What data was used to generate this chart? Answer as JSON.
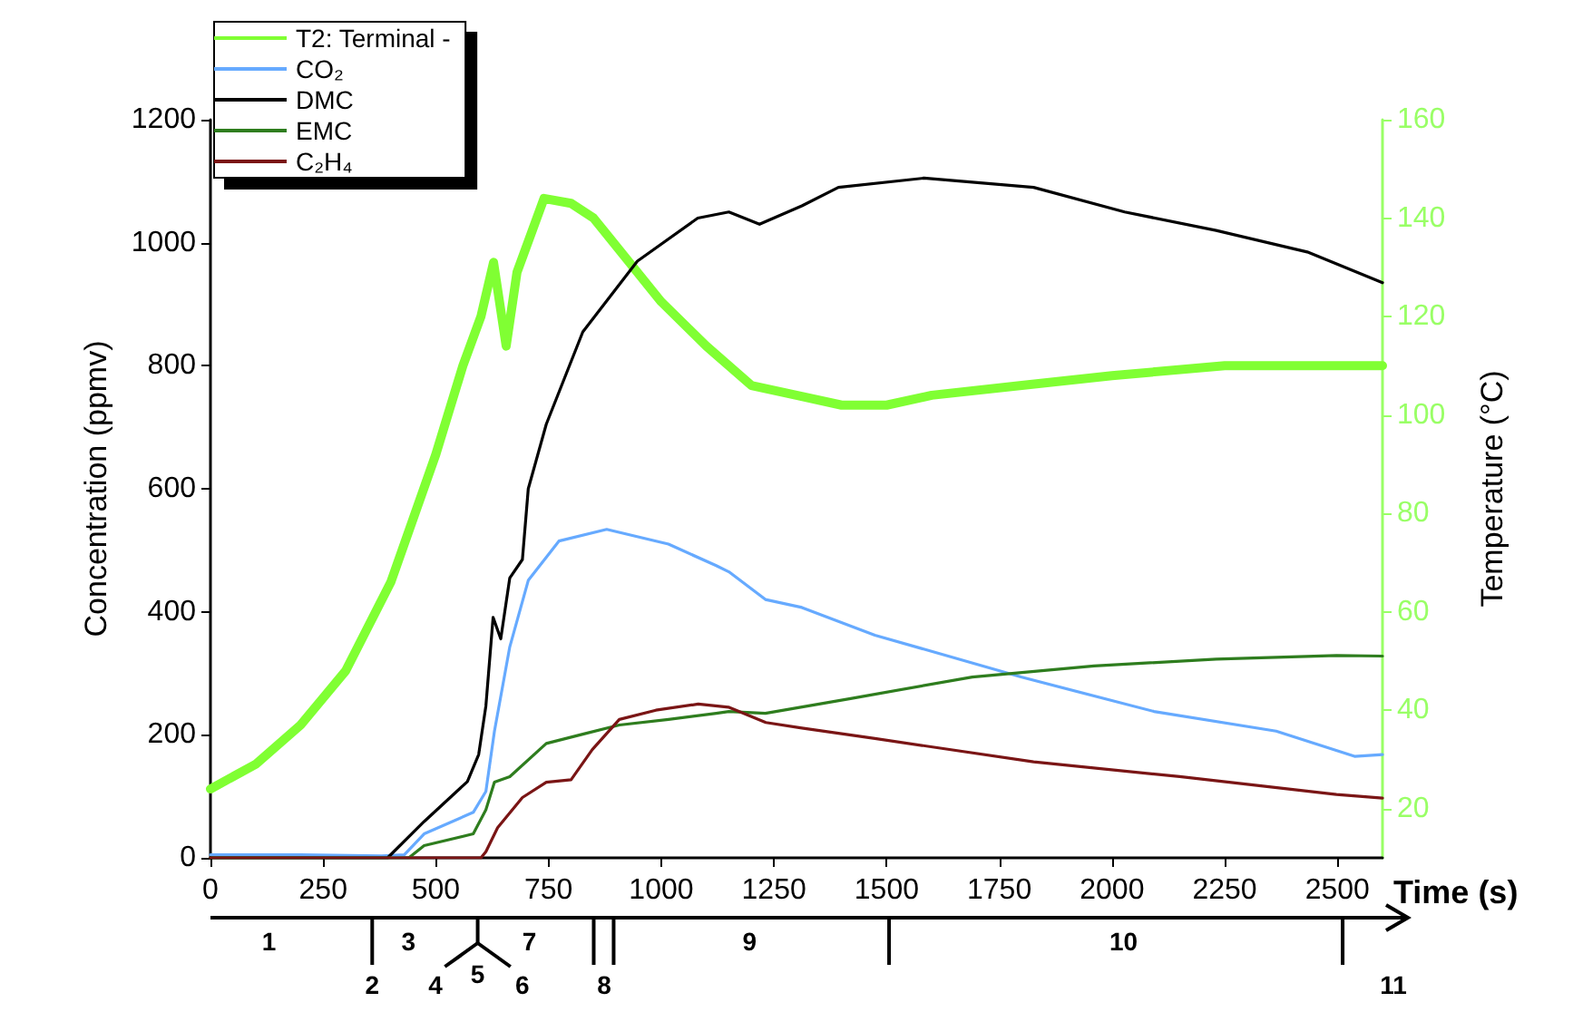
{
  "chart_data": {
    "type": "line",
    "xlabel": "Time (s)",
    "ylabel": "Concentration (ppmv)",
    "y2label": "Temperature (°C)",
    "xlim": [
      0,
      2600
    ],
    "xticks": [
      0,
      250,
      500,
      750,
      1000,
      1250,
      1500,
      1750,
      2000,
      2250,
      2500
    ],
    "ylim": [
      0,
      1200
    ],
    "yticks": [
      0,
      200,
      400,
      600,
      800,
      1000,
      1200
    ],
    "y2lim": [
      10,
      160
    ],
    "y2ticks": [
      20,
      40,
      60,
      80,
      100,
      120,
      140,
      160
    ],
    "grid": false,
    "legend": "top left",
    "marker": "none",
    "line_style": "solid",
    "series": [
      {
        "name": "T2: Terminal -",
        "color": "#80ff33",
        "axis": "y2",
        "x": [
          0,
          100,
          200,
          300,
          400,
          500,
          560,
          600,
          628,
          656,
          680,
          740,
          800,
          850,
          1000,
          1100,
          1200,
          1300,
          1400,
          1500,
          1600,
          1800,
          2000,
          2250,
          2500,
          2600
        ],
        "values": [
          24,
          29,
          37,
          48,
          66,
          92,
          110,
          120,
          131,
          114,
          129,
          144,
          143,
          140,
          123,
          114,
          106,
          104,
          102,
          102,
          104,
          106,
          108,
          110,
          110,
          110
        ]
      },
      {
        "name": "CO₂",
        "color": "#66aaff",
        "x": [
          0,
          200,
          380,
          430,
          474,
          583,
          611,
          630,
          664,
          705,
          773,
          879,
          1016,
          1122,
          1150,
          1231,
          1312,
          1474,
          1798,
          2093,
          2364,
          2538,
          2600
        ],
        "values": [
          5,
          5,
          3,
          5,
          39,
          74,
          108,
          206,
          343,
          451,
          515,
          534,
          510,
          475,
          465,
          420,
          407,
          362,
          294,
          238,
          206,
          165,
          168
        ]
      },
      {
        "name": "DMC",
        "color": "#000000",
        "x": [
          0,
          380,
          393,
          474,
          570,
          595,
          611,
          627,
          644,
          664,
          692,
          705,
          745,
          826,
          947,
          1081,
          1150,
          1218,
          1312,
          1393,
          1583,
          1826,
          2028,
          2231,
          2433,
          2600
        ],
        "values": [
          0,
          0,
          0,
          59,
          124,
          168,
          247,
          391,
          356,
          455,
          485,
          600,
          705,
          855,
          970,
          1040,
          1050,
          1030,
          1060,
          1090,
          1105,
          1090,
          1050,
          1020,
          985,
          935
        ]
      },
      {
        "name": "EMC",
        "color": "#2e7d1e",
        "x": [
          0,
          440,
          474,
          583,
          611,
          630,
          664,
          745,
          826,
          907,
          1016,
          1122,
          1150,
          1231,
          1420,
          1690,
          1960,
          2231,
          2498,
          2600
        ],
        "values": [
          0,
          0,
          20,
          39,
          78,
          123,
          132,
          186,
          201,
          216,
          225,
          235,
          238,
          235,
          259,
          294,
          312,
          323,
          329,
          328
        ]
      },
      {
        "name": "C₂H₄",
        "color": "#7a1515",
        "x": [
          0,
          600,
          611,
          637,
          692,
          745,
          800,
          847,
          907,
          988,
          1082,
          1149,
          1232,
          1312,
          1474,
          1826,
          2150,
          2498,
          2600
        ],
        "values": [
          0,
          0,
          10,
          49,
          98,
          123,
          127,
          176,
          225,
          240,
          250,
          245,
          220,
          211,
          194,
          156,
          132,
          103,
          97
        ]
      }
    ],
    "annotations": [
      "1",
      "2",
      "3",
      "4",
      "5",
      "6",
      "7",
      "8",
      "9",
      "10",
      "11"
    ]
  }
}
